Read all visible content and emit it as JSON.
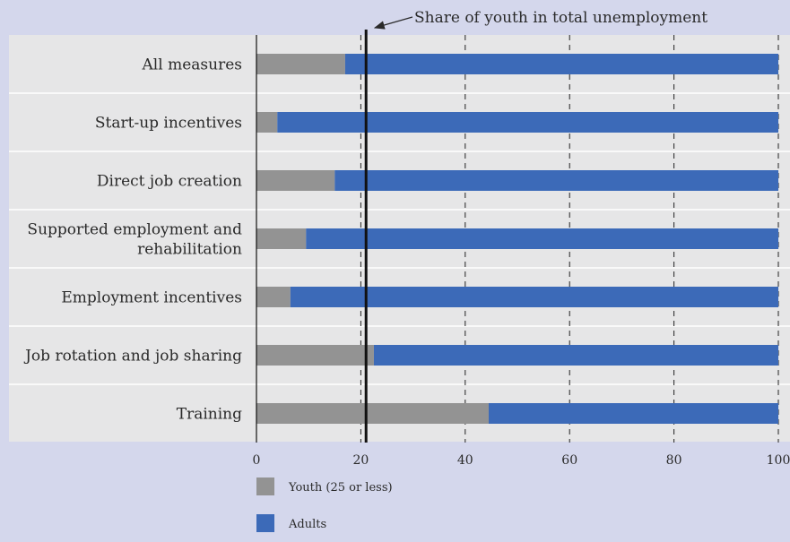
{
  "chart_data": {
    "type": "bar",
    "orientation": "horizontal",
    "stacked": true,
    "categories": [
      [
        "All measures"
      ],
      [
        "Start-up incentives"
      ],
      [
        "Direct job creation"
      ],
      [
        "Supported employment and",
        "rehabilitation"
      ],
      [
        "Employment incentives"
      ],
      [
        "Job rotation and job sharing"
      ],
      [
        "Training"
      ]
    ],
    "series": [
      {
        "name": "Youth (25 or less)",
        "color": "#939393",
        "values": [
          17,
          4,
          15,
          9.5,
          6.5,
          22.5,
          44.5
        ]
      },
      {
        "name": "Adults",
        "color": "#3c6ab8",
        "values": [
          83,
          96,
          85,
          90.5,
          93.5,
          77.5,
          55.5
        ]
      }
    ],
    "xlim": [
      0,
      100
    ],
    "xticks": [
      0,
      20,
      40,
      60,
      80,
      100
    ],
    "grid": "vertical dashed",
    "reference_line": {
      "value": 21,
      "label": "Share of youth in total unemployment"
    },
    "legend_position": "bottom"
  }
}
